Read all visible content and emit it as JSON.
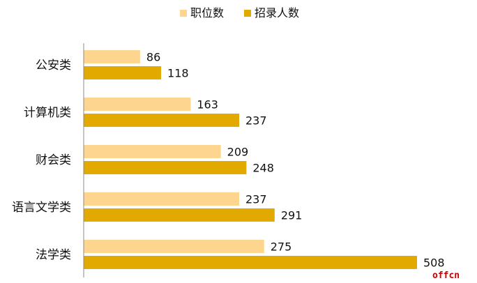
{
  "chart_data": {
    "type": "bar",
    "orientation": "horizontal",
    "categories": [
      "公安类",
      "计算机类",
      "财会类",
      "语言文学类",
      "法学类"
    ],
    "series": [
      {
        "name": "职位数",
        "values": [
          86,
          163,
          209,
          237,
          275
        ],
        "color": "#FDD58E"
      },
      {
        "name": "招录人数",
        "values": [
          118,
          237,
          248,
          291,
          508
        ],
        "color": "#E2A900"
      }
    ],
    "xlim": [
      0,
      508
    ],
    "grid": false,
    "legend_position": "top-center",
    "data_labels": true
  },
  "watermark": {
    "text": "offcn",
    "color": "#CC0000"
  }
}
